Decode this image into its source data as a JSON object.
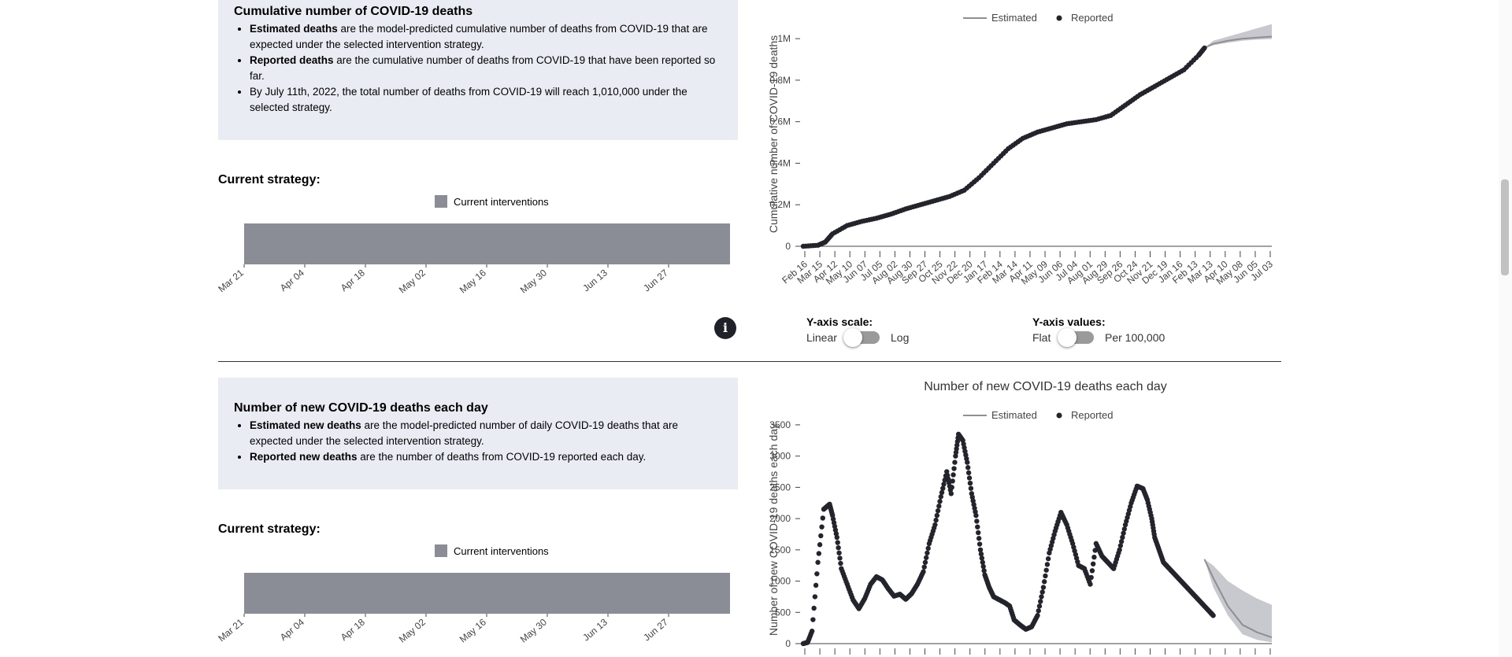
{
  "section1": {
    "title": "Cumulative number of COVID-19 deaths",
    "bullets": [
      {
        "bold": "Estimated deaths",
        "text": " are the model-predicted cumulative number of deaths from COVID-19 that are expected under the selected intervention strategy."
      },
      {
        "bold": "Reported deaths",
        "text": " are the cumulative number of deaths from COVID-19 that have been reported so far."
      },
      {
        "bold": "",
        "text": "By July 11th, 2022, the total number of deaths from COVID-19 will reach 1,010,000 under the selected strategy."
      }
    ],
    "strategy_label": "Current strategy:",
    "strategy_legend": "Current interventions",
    "timeline_ticks": [
      "Mar 21",
      "Apr 04",
      "Apr 18",
      "May 02",
      "May 16",
      "May 30",
      "Jun 13",
      "Jun 27"
    ]
  },
  "section2": {
    "title": "Number of new COVID-19 deaths each day",
    "bullets": [
      {
        "bold": "Estimated new deaths",
        "text": " are the model-predicted number of daily COVID-19 deaths that are expected under the selected intervention strategy."
      },
      {
        "bold": "Reported new deaths",
        "text": " are the number of deaths from COVID-19 reported each day."
      }
    ],
    "strategy_label": "Current strategy:",
    "strategy_legend": "Current interventions",
    "timeline_ticks": [
      "Mar 21",
      "Apr 04",
      "Apr 18",
      "May 02",
      "May 16",
      "May 30",
      "Jun 13",
      "Jun 27"
    ]
  },
  "controls": {
    "yscale_title": "Y-axis scale:",
    "yscale_left": "Linear",
    "yscale_right": "Log",
    "yvalues_title": "Y-axis values:",
    "yvalues_left": "Flat",
    "yvalues_right": "Per 100,000",
    "info_glyph": "i"
  },
  "colors": {
    "reported": "#23242c",
    "estimated": "#8e8e93",
    "band": "#c8c9cf",
    "panel_bg": "#e9ecf3",
    "strategy_bar": "#8b8d96"
  },
  "chart_data": [
    {
      "type": "line",
      "title": "",
      "ylabel": "Cumulative number of COVID-19 deaths",
      "legend": [
        "Estimated",
        "Reported"
      ],
      "legend_position": "top",
      "ylim": [
        0,
        1080000
      ],
      "yticks": [
        0,
        200000,
        400000,
        600000,
        800000,
        1000000
      ],
      "yticklabels": [
        "0",
        "0.2M",
        "0.4M",
        "0.6M",
        "0.8M",
        "1M"
      ],
      "xticks": [
        "Feb 16",
        "Mar 15",
        "Apr 12",
        "May 10",
        "Jun 07",
        "Jul 05",
        "Aug 02",
        "Aug 30",
        "Sep 27",
        "Oct 25",
        "Nov 22",
        "Dec 20",
        "Jan 17",
        "Feb 14",
        "Mar 14",
        "Apr 11",
        "May 09",
        "Jun 06",
        "Jul 04",
        "Aug 01",
        "Aug 29",
        "Sep 26",
        "Oct 24",
        "Nov 21",
        "Dec 19",
        "Jan 16",
        "Feb 13",
        "Mar 13",
        "Apr 10",
        "May 08",
        "Jun 05",
        "Jul 03"
      ],
      "reported": {
        "name": "Reported",
        "x": [
          0,
          1,
          1.5,
          2,
          3,
          4,
          5,
          6,
          7,
          8,
          9,
          10,
          11,
          12,
          13,
          14,
          15,
          16,
          17,
          18,
          19,
          20,
          21,
          22,
          23,
          24,
          25,
          26,
          27,
          27.4
        ],
        "y": [
          0,
          5000,
          20000,
          60000,
          100000,
          120000,
          135000,
          155000,
          180000,
          200000,
          220000,
          240000,
          270000,
          330000,
          400000,
          470000,
          520000,
          550000,
          570000,
          590000,
          600000,
          610000,
          630000,
          680000,
          730000,
          770000,
          810000,
          850000,
          920000,
          955000
        ]
      },
      "estimated": {
        "name": "Estimated",
        "x": [
          27.4,
          28,
          29,
          30,
          31,
          32
        ],
        "y": [
          955000,
          975000,
          990000,
          1000000,
          1005000,
          1010000
        ],
        "upper": [
          955000,
          990000,
          1010000,
          1030000,
          1050000,
          1070000
        ],
        "lower": [
          955000,
          968000,
          980000,
          990000,
          995000,
          998000
        ]
      },
      "grid": false
    },
    {
      "type": "line",
      "title": "Number of new COVID-19 deaths each day",
      "ylabel": "Number of new COVID-19 deaths each day",
      "legend": [
        "Estimated",
        "Reported"
      ],
      "legend_position": "top",
      "ylim": [
        0,
        3650
      ],
      "yticks": [
        0,
        500,
        1000,
        1500,
        2000,
        2500,
        3000,
        3500
      ],
      "yticklabels": [
        "0",
        "500",
        "1000",
        "1500",
        "2000",
        "2500",
        "3000",
        "3500"
      ],
      "reported": {
        "name": "Reported",
        "x": [
          0,
          0.3,
          0.6,
          1.0,
          1.4,
          1.8,
          2.0,
          2.3,
          2.6,
          3.0,
          3.4,
          3.8,
          4.2,
          4.6,
          5.0,
          5.4,
          5.8,
          6.2,
          6.6,
          7.0,
          7.4,
          7.8,
          8.2,
          8.6,
          9.0,
          9.4,
          9.8,
          10.1,
          10.4,
          10.6,
          10.9,
          11.2,
          11.5,
          11.8,
          12.1,
          12.4,
          12.7,
          13.0,
          13.4,
          13.8,
          14.1,
          14.4,
          14.8,
          15.2,
          15.6,
          16.0,
          16.4,
          16.8,
          17.2,
          17.6,
          18.0,
          18.4,
          18.8,
          19.2,
          19.6,
          20.0,
          20.4,
          20.8,
          21.2,
          21.6,
          22.0,
          22.4,
          22.8,
          23.2,
          23.5,
          23.8,
          24.0,
          24.3,
          24.6,
          25.0,
          25.4,
          25.8,
          26.2,
          26.6,
          27.0,
          27.4,
          27.8,
          28.0
        ],
        "y": [
          0,
          20,
          200,
          1300,
          2150,
          2230,
          2050,
          1700,
          1200,
          950,
          700,
          560,
          720,
          950,
          1070,
          1020,
          880,
          760,
          790,
          710,
          800,
          950,
          1150,
          1600,
          1900,
          2350,
          2750,
          2400,
          3000,
          3350,
          3250,
          2900,
          2400,
          2050,
          1500,
          1100,
          900,
          750,
          700,
          650,
          600,
          380,
          300,
          230,
          270,
          450,
          900,
          1450,
          1800,
          2100,
          1900,
          1600,
          1250,
          1200,
          950,
          1600,
          1400,
          1300,
          1200,
          1500,
          1900,
          2250,
          2520,
          2480,
          2300,
          2000,
          1700,
          1500,
          1300,
          1200,
          1100,
          1000,
          900,
          800,
          700,
          600,
          500,
          450
        ],
        "note": "x in approximate month offsets from Mar 2020; reported series ends ~Mar 2022"
      },
      "estimated": {
        "name": "Estimated",
        "x": [
          27.4,
          28,
          29,
          30,
          31,
          32
        ],
        "y": [
          1350,
          1050,
          600,
          300,
          180,
          100
        ],
        "upper": [
          1350,
          1250,
          1000,
          850,
          720,
          620
        ],
        "lower": [
          1350,
          900,
          450,
          150,
          60,
          20
        ]
      },
      "grid": false
    }
  ]
}
